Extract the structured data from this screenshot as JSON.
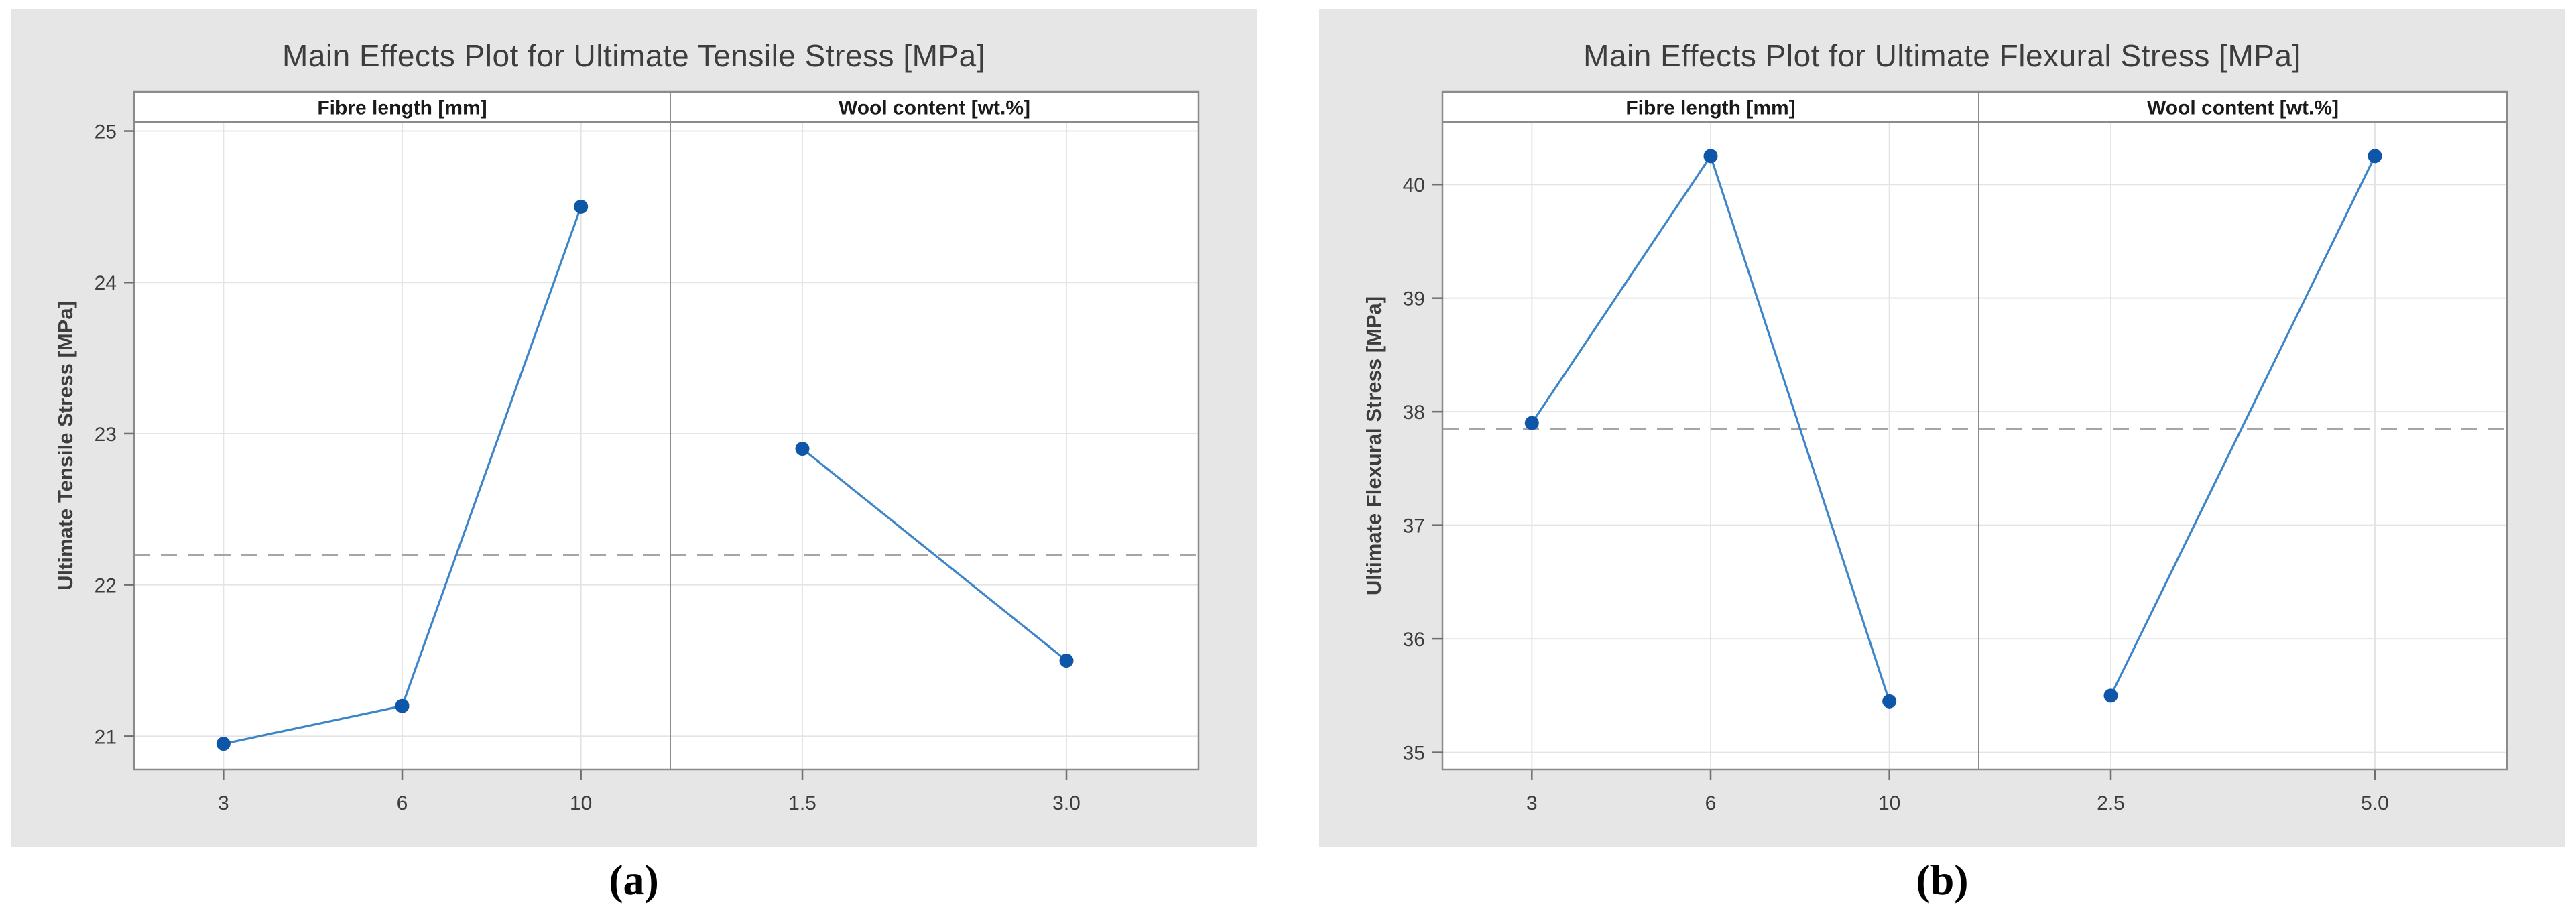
{
  "page": {
    "background": "#ffffff"
  },
  "chart_data": [
    {
      "type": "line",
      "title": "Main Effects Plot for Ultimate Tensile Stress [MPa]",
      "ylabel": "Ultimate Tensile Stress [MPa]",
      "caption": "(a)",
      "ylim": [
        20.78,
        25.06
      ],
      "yticks": [
        21,
        22,
        23,
        24,
        25
      ],
      "mean_line": 22.2,
      "grid": true,
      "legend": "none",
      "panels": [
        {
          "label": "Fibre length [mm]",
          "categories": [
            "3",
            "6",
            "10"
          ],
          "values": [
            20.95,
            21.2,
            24.5
          ]
        },
        {
          "label": "Wool content [wt.%]",
          "categories": [
            "1.5",
            "3.0"
          ],
          "values": [
            22.9,
            21.5
          ]
        }
      ]
    },
    {
      "type": "line",
      "title": "Main Effects Plot for Ultimate Flexural Stress [MPa]",
      "ylabel": "Ultimate Flexural Stress [MPa]",
      "caption": "(b)",
      "ylim": [
        34.85,
        40.55
      ],
      "yticks": [
        35,
        36,
        37,
        38,
        39,
        40
      ],
      "mean_line": 37.85,
      "grid": true,
      "legend": "none",
      "panels": [
        {
          "label": "Fibre length [mm]",
          "categories": [
            "3",
            "6",
            "10"
          ],
          "values": [
            37.9,
            40.25,
            35.45
          ]
        },
        {
          "label": "Wool content [wt.%]",
          "categories": [
            "2.5",
            "5.0"
          ],
          "values": [
            35.5,
            40.25
          ]
        }
      ]
    }
  ],
  "colors": {
    "figure_bg": "#e6e6e6",
    "plot_bg": "#ffffff",
    "frame": "#8b8b8b",
    "grid": "#e4e4e4",
    "mean_line": "#a6a6a6",
    "series_line": "#3d85c8",
    "marker": "#0e57a8",
    "title_text": "#3d3d3d",
    "tick_text": "#3d3d3d",
    "panel_text": "#1a1a1a",
    "caption_text": "#000000"
  }
}
